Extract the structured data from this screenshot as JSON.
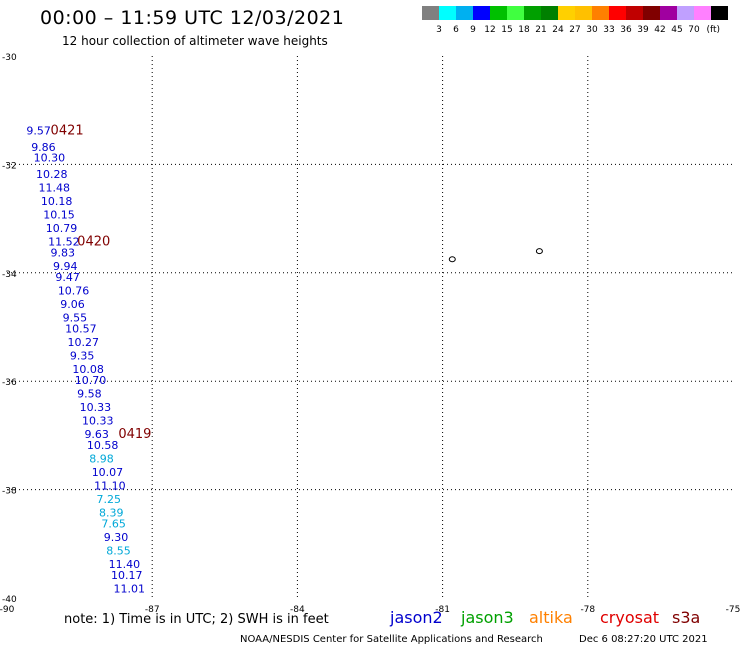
{
  "header": {
    "title": "00:00 – 11:59 UTC 12/03/2021",
    "subtitle": "12 hour collection of altimeter wave heights"
  },
  "colorbar": {
    "colors": [
      "#808080",
      "#00ffff",
      "#00b0f0",
      "#0000ff",
      "#00c000",
      "#40ff40",
      "#00a000",
      "#008000",
      "#ffd000",
      "#ffc000",
      "#ff8000",
      "#ff0000",
      "#c00000",
      "#800000",
      "#a000a0",
      "#c0a0ff",
      "#ff80ff",
      "#000000"
    ],
    "labels": [
      "3",
      "6",
      "9",
      "12",
      "15",
      "18",
      "21",
      "24",
      "27",
      "30",
      "33",
      "36",
      "39",
      "42",
      "45",
      "70"
    ],
    "unit": "(ft)"
  },
  "chart_data": {
    "type": "scatter",
    "xlim": [
      -90,
      -75
    ],
    "ylim": [
      -40,
      -30
    ],
    "x_ticks": [
      -90,
      -87,
      -84,
      -81,
      -78,
      -75
    ],
    "y_ticks": [
      -30,
      -32,
      -34,
      -36,
      -38,
      -40
    ],
    "grid": true,
    "colors": {
      "jason2": "#0000cd",
      "jason3": "#00a000",
      "altika": "#ff8000",
      "cryosat": "#e00000",
      "s3a": "#800000",
      "cyan": "#00a8d8",
      "time": "#800000"
    },
    "points": [
      {
        "lon": -89.6,
        "lat": -31.45,
        "value": "9.57",
        "color": "jason2"
      },
      {
        "lon": -89.5,
        "lat": -31.75,
        "value": "9.86",
        "color": "jason2"
      },
      {
        "lon": -89.45,
        "lat": -31.95,
        "value": "10.30",
        "color": "jason2"
      },
      {
        "lon": -89.4,
        "lat": -32.25,
        "value": "10.28",
        "color": "jason2"
      },
      {
        "lon": -89.35,
        "lat": -32.5,
        "value": "11.48",
        "color": "jason2"
      },
      {
        "lon": -89.3,
        "lat": -32.75,
        "value": "10.18",
        "color": "jason2"
      },
      {
        "lon": -89.25,
        "lat": -33.0,
        "value": "10.15",
        "color": "jason2"
      },
      {
        "lon": -89.2,
        "lat": -33.25,
        "value": "10.79",
        "color": "jason2"
      },
      {
        "lon": -89.15,
        "lat": -33.5,
        "value": "11.52",
        "color": "jason2"
      },
      {
        "lon": -89.1,
        "lat": -33.7,
        "value": "9.83",
        "color": "jason2"
      },
      {
        "lon": -89.05,
        "lat": -33.95,
        "value": "9.94",
        "color": "jason2"
      },
      {
        "lon": -89.0,
        "lat": -34.15,
        "value": "9.47",
        "color": "jason2"
      },
      {
        "lon": -88.95,
        "lat": -34.4,
        "value": "10.76",
        "color": "jason2"
      },
      {
        "lon": -88.9,
        "lat": -34.65,
        "value": "9.06",
        "color": "jason2"
      },
      {
        "lon": -88.85,
        "lat": -34.9,
        "value": "9.55",
        "color": "jason2"
      },
      {
        "lon": -88.8,
        "lat": -35.1,
        "value": "10.57",
        "color": "jason2"
      },
      {
        "lon": -88.75,
        "lat": -35.35,
        "value": "10.27",
        "color": "jason2"
      },
      {
        "lon": -88.7,
        "lat": -35.6,
        "value": "9.35",
        "color": "jason2"
      },
      {
        "lon": -88.65,
        "lat": -35.85,
        "value": "10.08",
        "color": "jason2"
      },
      {
        "lon": -88.6,
        "lat": -36.05,
        "value": "10.70",
        "color": "jason2"
      },
      {
        "lon": -88.55,
        "lat": -36.3,
        "value": "9.58",
        "color": "jason2"
      },
      {
        "lon": -88.5,
        "lat": -36.55,
        "value": "10.33",
        "color": "jason2"
      },
      {
        "lon": -88.45,
        "lat": -36.8,
        "value": "10.33",
        "color": "jason2"
      },
      {
        "lon": -88.4,
        "lat": -37.05,
        "value": "9.63",
        "color": "jason2"
      },
      {
        "lon": -88.35,
        "lat": -37.25,
        "value": "10.58",
        "color": "jason2"
      },
      {
        "lon": -88.3,
        "lat": -37.5,
        "value": "8.98",
        "color": "cyan"
      },
      {
        "lon": -88.25,
        "lat": -37.75,
        "value": "10.07",
        "color": "jason2"
      },
      {
        "lon": -88.2,
        "lat": -38.0,
        "value": "11.10",
        "color": "jason2"
      },
      {
        "lon": -88.15,
        "lat": -38.25,
        "value": "7.25",
        "color": "cyan"
      },
      {
        "lon": -88.1,
        "lat": -38.5,
        "value": "8.39",
        "color": "cyan"
      },
      {
        "lon": -88.05,
        "lat": -38.7,
        "value": "7.65",
        "color": "cyan"
      },
      {
        "lon": -88.0,
        "lat": -38.95,
        "value": "9.30",
        "color": "jason2"
      },
      {
        "lon": -87.95,
        "lat": -39.2,
        "value": "8.55",
        "color": "cyan"
      },
      {
        "lon": -87.9,
        "lat": -39.45,
        "value": "11.40",
        "color": "jason2"
      },
      {
        "lon": -87.85,
        "lat": -39.65,
        "value": "10.17",
        "color": "jason2"
      },
      {
        "lon": -87.8,
        "lat": -39.9,
        "value": "11.01",
        "color": "jason2"
      }
    ],
    "time_labels": [
      {
        "lon": -89.1,
        "lat": -31.45,
        "value": "0421"
      },
      {
        "lon": -88.55,
        "lat": -33.5,
        "value": "0420"
      },
      {
        "lon": -87.7,
        "lat": -37.05,
        "value": "0419"
      }
    ],
    "islands": [
      {
        "lon": -80.8,
        "lat": -33.75
      },
      {
        "lon": -79.0,
        "lat": -33.6
      }
    ]
  },
  "legend": {
    "note": "note:  1) Time is in UTC;  2) SWH is in feet",
    "satellites": [
      {
        "name": "jason2",
        "color": "#0000cd"
      },
      {
        "name": "jason3",
        "color": "#00a000"
      },
      {
        "name": "altika",
        "color": "#ff8000"
      },
      {
        "name": "cryosat",
        "color": "#e00000"
      },
      {
        "name": "s3a",
        "color": "#800000"
      }
    ]
  },
  "footer": {
    "credit": "NOAA/NESDIS Center for Satellite Applications and Research",
    "date": "Dec  6 08:27:20 UTC 2021"
  }
}
